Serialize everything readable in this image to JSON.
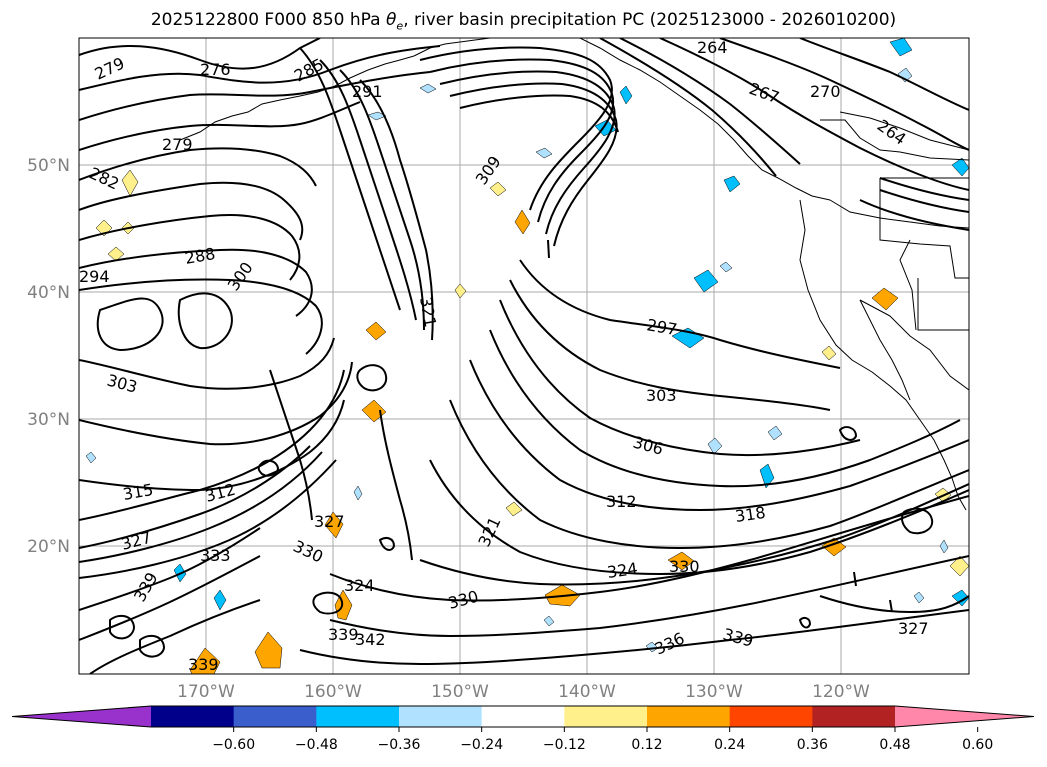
{
  "title_prefix": "2025122800 F000 850 hPa ",
  "title_symbol": "θ",
  "title_subscript": "e",
  "title_suffix": ", river basin precipitation PC (2025123000 - 2026010200)",
  "lat_labels": [
    "50°N",
    "40°N",
    "30°N",
    "20°N"
  ],
  "lon_labels": [
    "170°W",
    "160°W",
    "150°W",
    "140°W",
    "130°W",
    "120°W"
  ],
  "colorbar": {
    "colors": [
      "#9932cc",
      "#00008b",
      "#3a5fcd",
      "#00bfff",
      "#b0e2ff",
      "#ffffff",
      "#fff08c",
      "#ffa500",
      "#ff4500",
      "#b22222",
      "#ff88aa"
    ],
    "ticks": [
      "−0.60",
      "−0.48",
      "−0.36",
      "−0.24",
      "−0.12",
      "0.12",
      "0.24",
      "0.36",
      "0.48",
      "0.60"
    ]
  },
  "contour_labels": [
    "279",
    "276",
    "285",
    "291",
    "264",
    "267",
    "270",
    "279",
    "282",
    "309",
    "264",
    "288",
    "294",
    "300",
    "321",
    "297",
    "303",
    "303",
    "306",
    "315",
    "312",
    "312",
    "318",
    "327",
    "321",
    "324",
    "327",
    "330",
    "333",
    "339",
    "324",
    "330",
    "336",
    "339",
    "327",
    "339",
    "342",
    "339",
    "330"
  ],
  "shaded_colors": {
    "positive": "#ffa500",
    "positive_light": "#fff08c",
    "negative": "#00bfff",
    "negative_light": "#b0e2ff"
  }
}
